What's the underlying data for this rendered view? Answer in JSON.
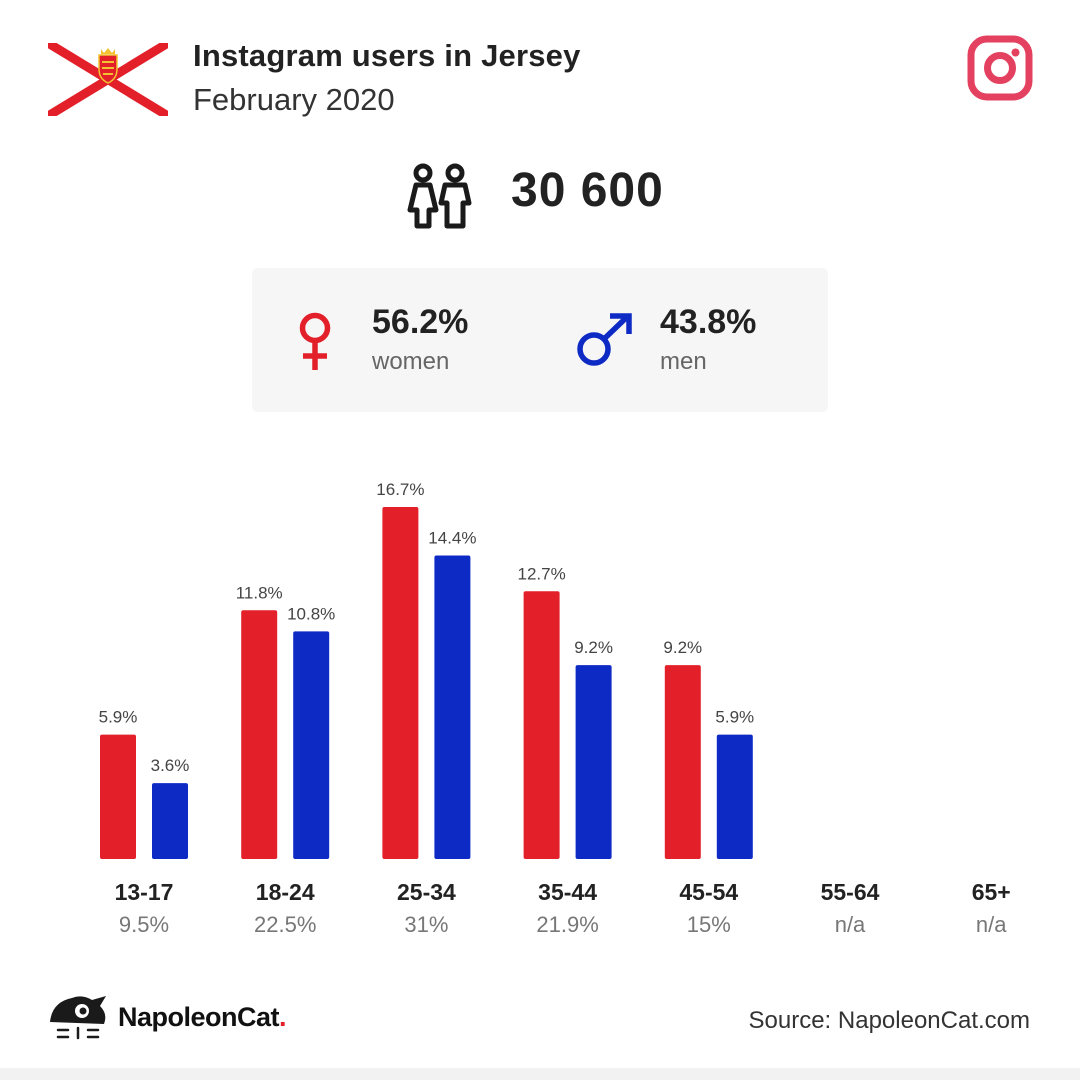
{
  "header": {
    "title": "Instagram users in Jersey",
    "subtitle": "February 2020",
    "flag_icon": "jersey-flag-icon",
    "platform_icon": "instagram-icon"
  },
  "total": {
    "icon": "users-icon",
    "value": "30 600"
  },
  "gender": {
    "women": {
      "pct": "56.2%",
      "label": "women",
      "icon": "female-symbol-icon",
      "color": "#e3202a"
    },
    "men": {
      "pct": "43.8%",
      "label": "men",
      "icon": "male-symbol-icon",
      "color": "#0e2ac4"
    }
  },
  "colors": {
    "women": "#e3202a",
    "men": "#0e2ac4",
    "instagram": "#e4405f"
  },
  "chart_data": {
    "type": "bar",
    "categories": [
      "13-17",
      "18-24",
      "25-34",
      "35-44",
      "45-54",
      "55-64",
      "65+"
    ],
    "category_totals": [
      "9.5%",
      "22.5%",
      "31%",
      "21.9%",
      "15%",
      "n/a",
      "n/a"
    ],
    "series": [
      {
        "values": [
          5.9,
          11.8,
          16.7,
          12.7,
          9.2,
          null,
          null
        ],
        "labels": [
          "5.9%",
          "11.8%",
          "16.7%",
          "12.7%",
          "9.2%",
          "",
          ""
        ],
        "color": "#e3202a"
      },
      {
        "values": [
          3.6,
          10.8,
          14.4,
          9.2,
          5.9,
          null,
          null
        ],
        "labels": [
          "3.6%",
          "10.8%",
          "14.4%",
          "9.2%",
          "5.9%",
          "",
          ""
        ],
        "color": "#0e2ac4"
      }
    ],
    "title": "",
    "xlabel": "",
    "ylabel": "",
    "ylim": [
      0,
      16.7
    ],
    "grid": false,
    "legend": "none"
  },
  "footer": {
    "brand_name": "NapoleonCat",
    "brand_dot": ".",
    "logo_icon": "napoleoncat-logo-icon",
    "source": "Source: NapoleonCat.com"
  }
}
